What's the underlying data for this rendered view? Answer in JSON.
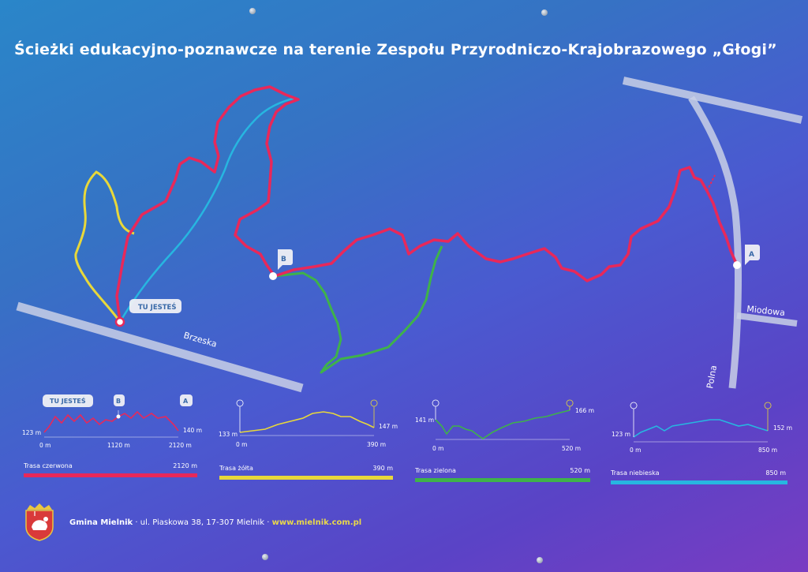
{
  "title": "Ścieżki edukacyjno-poznawcze na terenie Zespołu Przyrodniczo-Krajobrazowego „Głogi”",
  "map": {
    "you_are_here": "TU JESTEŚ",
    "point_a": "A",
    "point_b": "B",
    "streets": {
      "brzeska": "Brzeska",
      "miodowa": "Miodowa",
      "polna": "Polna"
    }
  },
  "colors": {
    "red": "#e8285a",
    "yellow": "#e8d83a",
    "green": "#3fb24a",
    "blue": "#27b6e0"
  },
  "profiles": {
    "red": {
      "markers": [
        "TU JESTEŚ",
        "B",
        "A"
      ],
      "start_elev": "123 m",
      "end_elev": "140 m",
      "x_start": "0 m",
      "x_mid": "1120 m",
      "x_end": "2120 m"
    },
    "yellow": {
      "start_elev": "133 m",
      "end_elev": "147 m",
      "x_start": "0 m",
      "x_end": "390 m"
    },
    "green": {
      "start_elev": "141 m",
      "end_elev": "166 m",
      "x_start": "0 m",
      "x_end": "520 m"
    },
    "blue": {
      "start_elev": "123 m",
      "end_elev": "152 m",
      "x_start": "0 m",
      "x_end": "850 m"
    }
  },
  "legend": [
    {
      "name": "Trasa czerwona",
      "length": "2120 m",
      "color": "#e8285a"
    },
    {
      "name": "Trasa żółta",
      "length": "390 m",
      "color": "#e8d83a"
    },
    {
      "name": "Trasa zielona",
      "length": "520 m",
      "color": "#3fb24a"
    },
    {
      "name": "Trasa niebieska",
      "length": "850 m",
      "color": "#27b6e0"
    }
  ],
  "footer": {
    "gmina": "Gmina Mielnik",
    "address": " · ul. Piaskowa 38, 17-307 Mielnik · ",
    "url": "www.mielnik.com.pl"
  }
}
